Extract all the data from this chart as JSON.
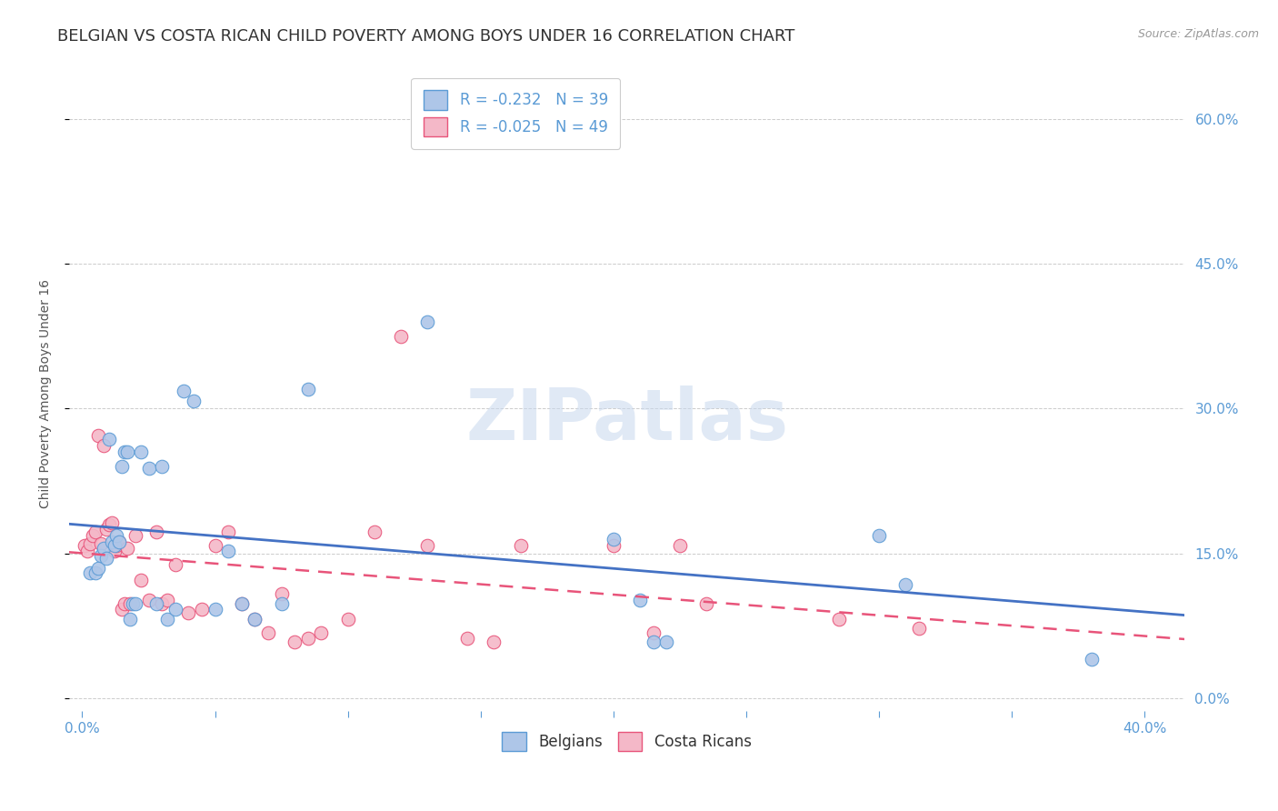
{
  "title": "BELGIAN VS COSTA RICAN CHILD POVERTY AMONG BOYS UNDER 16 CORRELATION CHART",
  "source": "Source: ZipAtlas.com",
  "ylabel": "Child Poverty Among Boys Under 16",
  "xlim": [
    -0.005,
    0.415
  ],
  "ylim": [
    -0.02,
    0.65
  ],
  "yticks": [
    0.0,
    0.15,
    0.3,
    0.45,
    0.6
  ],
  "xtick_positions": [
    0.0,
    0.05,
    0.1,
    0.15,
    0.2,
    0.25,
    0.3,
    0.35,
    0.4
  ],
  "watermark": "ZIPatlas",
  "legend_entries": [
    {
      "label": "Belgians",
      "color": "#aec6e8",
      "edge": "#5b9bd5",
      "R": "-0.232",
      "N": "39"
    },
    {
      "label": "Costa Ricans",
      "color": "#f4b8c8",
      "edge": "#e8547a",
      "R": "-0.025",
      "N": "49"
    }
  ],
  "belgians_x": [
    0.003,
    0.005,
    0.006,
    0.007,
    0.008,
    0.009,
    0.01,
    0.011,
    0.012,
    0.013,
    0.014,
    0.015,
    0.016,
    0.017,
    0.018,
    0.019,
    0.02,
    0.022,
    0.025,
    0.028,
    0.03,
    0.032,
    0.035,
    0.038,
    0.042,
    0.05,
    0.055,
    0.06,
    0.065,
    0.075,
    0.085,
    0.13,
    0.2,
    0.21,
    0.215,
    0.22,
    0.3,
    0.31,
    0.38
  ],
  "belgians_y": [
    0.13,
    0.13,
    0.135,
    0.148,
    0.155,
    0.145,
    0.268,
    0.162,
    0.158,
    0.168,
    0.162,
    0.24,
    0.255,
    0.255,
    0.082,
    0.098,
    0.098,
    0.255,
    0.238,
    0.098,
    0.24,
    0.082,
    0.092,
    0.318,
    0.308,
    0.092,
    0.152,
    0.098,
    0.082,
    0.098,
    0.32,
    0.39,
    0.165,
    0.102,
    0.058,
    0.058,
    0.168,
    0.118,
    0.04
  ],
  "costaricans_x": [
    0.001,
    0.002,
    0.003,
    0.004,
    0.005,
    0.006,
    0.007,
    0.008,
    0.009,
    0.01,
    0.011,
    0.012,
    0.013,
    0.014,
    0.015,
    0.016,
    0.017,
    0.018,
    0.02,
    0.022,
    0.025,
    0.028,
    0.03,
    0.032,
    0.035,
    0.04,
    0.045,
    0.05,
    0.055,
    0.06,
    0.065,
    0.07,
    0.075,
    0.08,
    0.085,
    0.09,
    0.1,
    0.11,
    0.12,
    0.13,
    0.145,
    0.155,
    0.165,
    0.2,
    0.215,
    0.225,
    0.235,
    0.285,
    0.315
  ],
  "costaricans_y": [
    0.158,
    0.152,
    0.16,
    0.168,
    0.172,
    0.272,
    0.16,
    0.262,
    0.175,
    0.18,
    0.182,
    0.152,
    0.158,
    0.162,
    0.092,
    0.098,
    0.155,
    0.098,
    0.168,
    0.122,
    0.102,
    0.172,
    0.098,
    0.102,
    0.138,
    0.088,
    0.092,
    0.158,
    0.172,
    0.098,
    0.082,
    0.068,
    0.108,
    0.058,
    0.062,
    0.068,
    0.082,
    0.172,
    0.375,
    0.158,
    0.062,
    0.058,
    0.158,
    0.158,
    0.068,
    0.158,
    0.098,
    0.082,
    0.072
  ],
  "blue_line_color": "#4472c4",
  "pink_line_color": "#e8547a",
  "grid_color": "#cccccc",
  "title_color": "#333333",
  "axis_tick_color": "#5b9bd5",
  "background_color": "#ffffff",
  "title_fontsize": 13,
  "label_fontsize": 10,
  "tick_fontsize": 11
}
